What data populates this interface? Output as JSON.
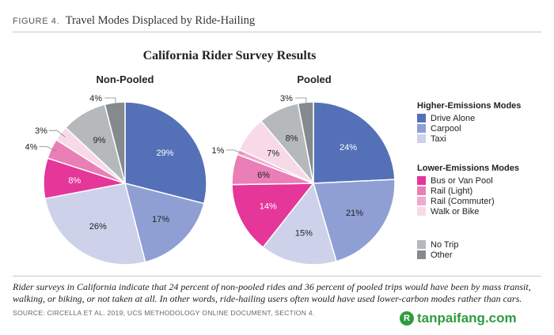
{
  "figure": {
    "label": "FIGURE 4.",
    "title": "Travel Modes Displaced by Ride-Hailing",
    "main_title": "California Rider Survey Results",
    "caption": "Rider surveys in California indicate that 24 percent of non-pooled rides and 36 percent of pooled trips would have been by mass transit, walking, or biking, or not taken at all. In other words, ride-hailing users often would have used lower-carbon modes rather than cars.",
    "source": "SOURCE: CIRCELLA ET AL. 2019; UCS METHODOLOGY ONLINE DOCUMENT, SECTION 4.",
    "watermark": "tanpaifang.com",
    "watermark_logo": "R"
  },
  "legend": {
    "higher_title": "Higher-Emissions Modes",
    "higher_items": [
      {
        "label": "Drive Alone",
        "color": "#5471b8"
      },
      {
        "label": "Carpool",
        "color": "#8f9fd3"
      },
      {
        "label": "Taxi",
        "color": "#cdd2ea"
      }
    ],
    "lower_title": "Lower-Emissions Modes",
    "lower_items": [
      {
        "label": "Bus or Van Pool",
        "color": "#e5369a"
      },
      {
        "label": "Rail (Light)",
        "color": "#e97fb6"
      },
      {
        "label": "Rail (Commuter)",
        "color": "#f1a9cf"
      },
      {
        "label": "Walk or Bike",
        "color": "#f8d9e8"
      }
    ],
    "other_items": [
      {
        "label": "No Trip",
        "color": "#b6b9bc"
      },
      {
        "label": "Other",
        "color": "#858a8f"
      }
    ]
  },
  "chart_data": [
    {
      "type": "pie",
      "title": "Non-Pooled",
      "categories": [
        "Drive Alone",
        "Carpool",
        "Taxi",
        "Bus or Van Pool",
        "Rail (Light)",
        "Rail (Commuter)",
        "Walk or Bike",
        "No Trip",
        "Other"
      ],
      "values": [
        29,
        17,
        26,
        8,
        4,
        0,
        3,
        9,
        4
      ],
      "labels": [
        "29%",
        "17%",
        "26%",
        "8%",
        "4%",
        "",
        "3%",
        "9%",
        "4%"
      ],
      "colors": [
        "#5471b8",
        "#8f9fd3",
        "#cdd2ea",
        "#e5369a",
        "#e97fb6",
        "#f1a9cf",
        "#f8d9e8",
        "#b6b9bc",
        "#858a8f"
      ]
    },
    {
      "type": "pie",
      "title": "Pooled",
      "categories": [
        "Drive Alone",
        "Carpool",
        "Taxi",
        "Bus or Van Pool",
        "Rail (Light)",
        "Rail (Commuter)",
        "Walk or Bike",
        "No Trip",
        "Other"
      ],
      "values": [
        24,
        21,
        15,
        14,
        6,
        1,
        7,
        8,
        3
      ],
      "labels": [
        "24%",
        "21%",
        "15%",
        "14%",
        "6%",
        "1%",
        "7%",
        "8%",
        "3%"
      ],
      "colors": [
        "#5471b8",
        "#8f9fd3",
        "#cdd2ea",
        "#e5369a",
        "#e97fb6",
        "#f1a9cf",
        "#f8d9e8",
        "#b6b9bc",
        "#858a8f"
      ]
    }
  ]
}
